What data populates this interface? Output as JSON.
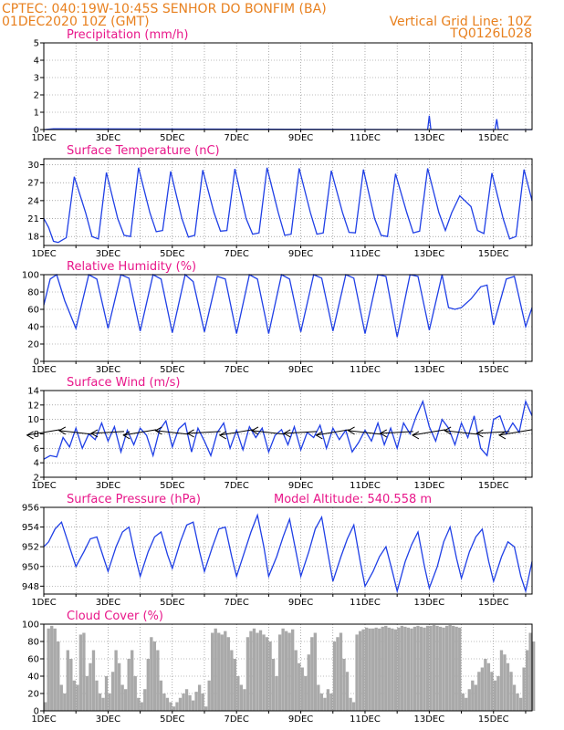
{
  "header": {
    "line1_left": "CPTEC:   040:19W-10:45S   SENHOR DO BONFIM (BA)",
    "line2_left": "01DEC2020 10Z (GMT)",
    "line2_right": "Vertical Grid Line: 10Z",
    "line3_right": "TQ0126L028"
  },
  "x_axis": {
    "ticks": [
      "1DEC",
      "3DEC",
      "5DEC",
      "7DEC",
      "9DEC",
      "11DEC",
      "13DEC",
      "15DEC"
    ],
    "start_day": 1,
    "end_day": 16.2
  },
  "colors": {
    "line": "#1f3fe6",
    "title": "#e8178a",
    "header": "#e8801e",
    "grid": "#7a7a7a",
    "cloud": "#a9a9a9",
    "arrow": "#000000"
  },
  "chart_data": [
    {
      "type": "line",
      "title": "Precipitation (mm/h)",
      "ylim": [
        0,
        5
      ],
      "yticks": [
        0,
        1,
        2,
        3,
        4,
        5
      ],
      "series": [
        {
          "x": [
            1.0,
            1.3,
            12.95,
            13.0,
            13.05,
            15.05,
            15.1,
            15.15,
            16.2
          ],
          "values": [
            0,
            0.05,
            0,
            0.8,
            0,
            0,
            0.6,
            0,
            0
          ]
        }
      ]
    },
    {
      "type": "line",
      "title": "Surface Temperature (nC)",
      "ylim": [
        16.5,
        31
      ],
      "yticks": [
        18,
        21,
        24,
        27,
        30
      ],
      "series": [
        {
          "x": [
            1.0,
            1.15,
            1.3,
            1.45,
            1.7,
            1.95,
            2.3,
            2.5,
            2.7,
            2.95,
            3.3,
            3.5,
            3.7,
            3.95,
            4.3,
            4.5,
            4.7,
            4.95,
            5.3,
            5.5,
            5.7,
            5.95,
            6.3,
            6.5,
            6.7,
            6.95,
            7.3,
            7.5,
            7.7,
            7.95,
            8.3,
            8.5,
            8.7,
            8.95,
            9.3,
            9.5,
            9.7,
            9.95,
            10.3,
            10.5,
            10.7,
            10.95,
            11.3,
            11.5,
            11.7,
            11.95,
            12.3,
            12.5,
            12.7,
            12.95,
            13.3,
            13.5,
            13.7,
            13.95,
            14.3,
            14.5,
            14.7,
            14.95,
            15.3,
            15.5,
            15.7,
            15.95,
            16.2
          ],
          "values": [
            21,
            19.5,
            17.2,
            17.0,
            17.8,
            28.0,
            22,
            18.0,
            17.6,
            28.7,
            21,
            18.2,
            18.0,
            29.5,
            22,
            18.8,
            19.0,
            28.9,
            21,
            17.9,
            18.2,
            29.1,
            22,
            18.9,
            19.0,
            29.3,
            21,
            18.4,
            18.6,
            29.5,
            22,
            18.2,
            18.4,
            29.4,
            22,
            18.4,
            18.6,
            29.0,
            22,
            18.7,
            18.6,
            29.2,
            21,
            18.2,
            18.0,
            28.5,
            22,
            18.6,
            18.9,
            29.4,
            22,
            19.0,
            22,
            24.8,
            23,
            19.0,
            18.5,
            28.6,
            21,
            17.6,
            18.0,
            29.2,
            24
          ]
        }
      ]
    },
    {
      "type": "line",
      "title": "Relative Humidity (%)",
      "ylim": [
        0,
        100
      ],
      "yticks": [
        0,
        20,
        40,
        60,
        80,
        100
      ],
      "series": [
        {
          "x": [
            1.0,
            1.2,
            1.4,
            1.65,
            2.0,
            2.4,
            2.65,
            3.0,
            3.4,
            3.65,
            4.0,
            4.4,
            4.65,
            5.0,
            5.4,
            5.65,
            6.0,
            6.4,
            6.65,
            7.0,
            7.4,
            7.65,
            8.0,
            8.4,
            8.65,
            9.0,
            9.4,
            9.65,
            10.0,
            10.4,
            10.65,
            11.0,
            11.4,
            11.65,
            12.0,
            12.4,
            12.65,
            13.0,
            13.4,
            13.6,
            13.8,
            14.0,
            14.3,
            14.6,
            14.8,
            15.0,
            15.4,
            15.65,
            16.0,
            16.2
          ],
          "values": [
            65,
            95,
            100,
            70,
            38,
            100,
            95,
            38,
            100,
            96,
            35,
            100,
            95,
            33,
            100,
            92,
            34,
            98,
            95,
            32,
            100,
            95,
            32,
            100,
            95,
            34,
            100,
            96,
            35,
            100,
            96,
            32,
            100,
            98,
            28,
            100,
            98,
            36,
            100,
            62,
            60,
            62,
            72,
            86,
            88,
            42,
            95,
            98,
            40,
            62
          ]
        }
      ]
    },
    {
      "type": "line",
      "title": "Surface Wind (m/s)",
      "ylim": [
        2,
        14
      ],
      "yticks": [
        2,
        4,
        6,
        8,
        10,
        12,
        14
      ],
      "series": [
        {
          "x": [
            1.0,
            1.2,
            1.4,
            1.6,
            1.8,
            2.0,
            2.2,
            2.4,
            2.6,
            2.8,
            3.0,
            3.2,
            3.4,
            3.6,
            3.8,
            4.0,
            4.2,
            4.4,
            4.6,
            4.8,
            5.0,
            5.2,
            5.4,
            5.6,
            5.8,
            6.0,
            6.2,
            6.4,
            6.6,
            6.8,
            7.0,
            7.2,
            7.4,
            7.6,
            7.8,
            8.0,
            8.2,
            8.4,
            8.6,
            8.8,
            9.0,
            9.2,
            9.4,
            9.6,
            9.8,
            10.0,
            10.2,
            10.4,
            10.6,
            10.8,
            11.0,
            11.2,
            11.4,
            11.6,
            11.8,
            12.0,
            12.2,
            12.4,
            12.6,
            12.8,
            13.0,
            13.2,
            13.4,
            13.6,
            13.8,
            14.0,
            14.2,
            14.4,
            14.6,
            14.8,
            15.0,
            15.2,
            15.4,
            15.6,
            15.8,
            16.0,
            16.2
          ],
          "values": [
            4.5,
            5.0,
            4.8,
            7.5,
            6.2,
            8.8,
            6.0,
            8.0,
            7.2,
            9.5,
            7.0,
            9.0,
            5.5,
            8.5,
            6.5,
            8.8,
            7.8,
            5.0,
            8.5,
            9.8,
            6.2,
            8.7,
            9.5,
            5.5,
            8.8,
            7.0,
            5.0,
            8.2,
            9.5,
            6.0,
            8.5,
            5.8,
            9.0,
            7.5,
            8.8,
            5.5,
            7.8,
            8.6,
            6.5,
            9.0,
            5.8,
            8.2,
            7.5,
            9.2,
            6.0,
            8.8,
            7.2,
            8.5,
            5.5,
            6.8,
            8.5,
            7.0,
            9.5,
            6.5,
            8.8,
            6.0,
            9.5,
            8.0,
            10.5,
            12.5,
            9.0,
            7.0,
            10.0,
            8.8,
            6.5,
            9.5,
            7.5,
            10.5,
            6.0,
            5.0,
            10.0,
            10.5,
            8.0,
            9.5,
            8.2,
            12.5,
            10.5
          ]
        }
      ],
      "wind_arrows_x": [
        1.5,
        2.5,
        3.5,
        4.5,
        5.5,
        6.5,
        7.5,
        8.5,
        9.5,
        10.5,
        11.5,
        12.5,
        13.5,
        14.5,
        15.5,
        16.2
      ]
    },
    {
      "type": "line",
      "title": "Surface Pressure (hPa)",
      "annotation": "Model Altitude: 540.558  m",
      "ylim": [
        947.2,
        956
      ],
      "yticks": [
        948,
        950,
        952,
        954,
        956
      ],
      "series": [
        {
          "x": [
            1.0,
            1.15,
            1.35,
            1.55,
            1.75,
            2.0,
            2.25,
            2.45,
            2.65,
            2.85,
            3.0,
            3.25,
            3.45,
            3.65,
            3.85,
            4.0,
            4.25,
            4.45,
            4.65,
            4.85,
            5.0,
            5.25,
            5.45,
            5.65,
            5.85,
            6.0,
            6.25,
            6.45,
            6.65,
            6.85,
            7.0,
            7.25,
            7.45,
            7.65,
            7.85,
            8.0,
            8.25,
            8.45,
            8.65,
            8.85,
            9.0,
            9.25,
            9.45,
            9.65,
            9.85,
            10.0,
            10.25,
            10.45,
            10.65,
            10.85,
            11.0,
            11.25,
            11.45,
            11.65,
            11.85,
            12.0,
            12.25,
            12.45,
            12.65,
            12.85,
            13.0,
            13.25,
            13.45,
            13.65,
            13.85,
            14.0,
            14.25,
            14.45,
            14.65,
            14.85,
            15.0,
            15.25,
            15.45,
            15.65,
            15.85,
            16.0,
            16.2
          ],
          "values": [
            952,
            952.5,
            953.8,
            954.5,
            952.5,
            950.0,
            951.5,
            952.8,
            953.0,
            951.0,
            949.5,
            952.0,
            953.5,
            954.0,
            951.0,
            949.0,
            951.5,
            953.0,
            953.5,
            951.2,
            949.8,
            952.5,
            954.2,
            954.5,
            951.5,
            949.5,
            952.0,
            953.8,
            954.0,
            951.0,
            949.0,
            951.5,
            953.5,
            955.2,
            952.0,
            949.0,
            951.0,
            953.0,
            954.8,
            951.5,
            949.0,
            951.5,
            953.8,
            955.0,
            951.2,
            948.5,
            951.0,
            952.8,
            954.2,
            950.5,
            948.0,
            949.5,
            951.0,
            952.0,
            949.5,
            947.5,
            950.5,
            952.2,
            953.5,
            950.0,
            947.8,
            950.0,
            952.5,
            954.0,
            950.8,
            948.8,
            951.5,
            953.0,
            953.8,
            950.5,
            948.5,
            951.0,
            952.5,
            952.0,
            949.0,
            947.5,
            950.5
          ]
        }
      ]
    },
    {
      "type": "area",
      "title": "Cloud Cover (%)",
      "ylim": [
        0,
        100
      ],
      "yticks": [
        0,
        20,
        40,
        60,
        80,
        100
      ],
      "series": [
        {
          "x": [
            1.0,
            1.1,
            1.2,
            1.3,
            1.4,
            1.5,
            1.6,
            1.7,
            1.8,
            1.9,
            2.0,
            2.1,
            2.2,
            2.3,
            2.4,
            2.5,
            2.6,
            2.7,
            2.8,
            2.9,
            3.0,
            3.1,
            3.2,
            3.3,
            3.4,
            3.5,
            3.6,
            3.7,
            3.8,
            3.9,
            4.0,
            4.1,
            4.2,
            4.3,
            4.4,
            4.5,
            4.6,
            4.7,
            4.8,
            4.9,
            5.0,
            5.1,
            5.2,
            5.3,
            5.4,
            5.5,
            5.6,
            5.7,
            5.8,
            5.9,
            6.0,
            6.1,
            6.2,
            6.3,
            6.4,
            6.5,
            6.6,
            6.7,
            6.8,
            6.9,
            7.0,
            7.1,
            7.2,
            7.3,
            7.4,
            7.5,
            7.6,
            7.7,
            7.8,
            7.9,
            8.0,
            8.1,
            8.2,
            8.3,
            8.4,
            8.5,
            8.6,
            8.7,
            8.8,
            8.9,
            9.0,
            9.1,
            9.2,
            9.3,
            9.4,
            9.5,
            9.6,
            9.7,
            9.8,
            9.9,
            10.0,
            10.1,
            10.2,
            10.3,
            10.4,
            10.5,
            10.6,
            10.7,
            10.8,
            10.9,
            11.0,
            11.1,
            11.2,
            11.3,
            11.4,
            11.5,
            11.6,
            11.7,
            11.8,
            11.9,
            12.0,
            12.1,
            12.2,
            12.3,
            12.4,
            12.5,
            12.6,
            12.7,
            12.8,
            12.9,
            13.0,
            13.1,
            13.2,
            13.3,
            13.4,
            13.5,
            13.6,
            13.7,
            13.8,
            13.9,
            14.0,
            14.1,
            14.2,
            14.3,
            14.4,
            14.5,
            14.6,
            14.7,
            14.8,
            14.9,
            15.0,
            15.1,
            15.2,
            15.3,
            15.4,
            15.5,
            15.6,
            15.7,
            15.8,
            15.9,
            16.0,
            16.1,
            16.2
          ],
          "values": [
            10,
            95,
            98,
            95,
            80,
            30,
            20,
            70,
            60,
            35,
            30,
            88,
            90,
            40,
            55,
            70,
            35,
            20,
            15,
            40,
            20,
            45,
            70,
            55,
            30,
            25,
            60,
            70,
            40,
            15,
            10,
            25,
            60,
            85,
            80,
            70,
            35,
            20,
            15,
            10,
            5,
            10,
            15,
            20,
            25,
            18,
            12,
            22,
            30,
            20,
            5,
            35,
            90,
            95,
            90,
            88,
            92,
            85,
            70,
            60,
            40,
            30,
            25,
            85,
            92,
            95,
            90,
            93,
            88,
            85,
            80,
            60,
            40,
            88,
            95,
            92,
            90,
            94,
            70,
            55,
            50,
            40,
            65,
            85,
            90,
            30,
            20,
            15,
            25,
            20,
            80,
            85,
            90,
            60,
            45,
            15,
            10,
            88,
            92,
            94,
            96,
            95,
            95,
            96,
            95,
            97,
            98,
            96,
            95,
            94,
            96,
            98,
            97,
            96,
            95,
            97,
            98,
            97,
            96,
            98,
            98,
            99,
            98,
            97,
            96,
            98,
            99,
            98,
            97,
            96,
            20,
            15,
            25,
            35,
            30,
            45,
            50,
            60,
            55,
            45,
            35,
            40,
            70,
            65,
            55,
            45,
            30,
            20,
            15,
            50,
            70,
            90,
            80
          ]
        }
      ]
    }
  ]
}
